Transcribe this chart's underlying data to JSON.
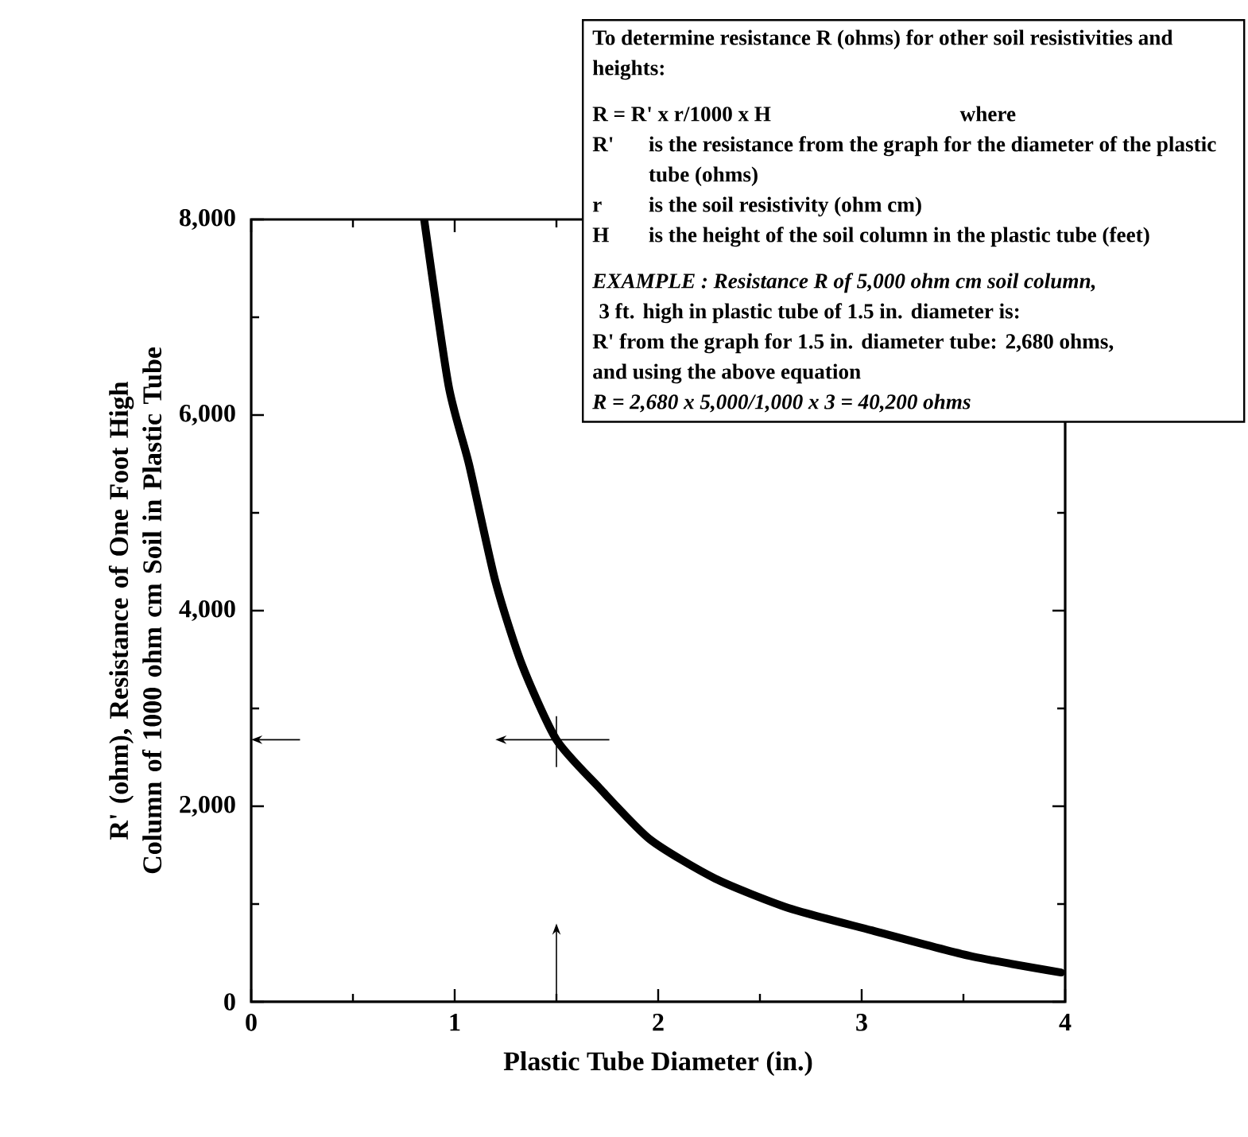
{
  "chart_data": {
    "type": "line",
    "xlabel": "Plastic Tube Diameter (in.)",
    "ylabel": "R' (ohm),  Resistance of One Foot High Column of 1000 ohm cm Soil in Plastic Tube",
    "x": [
      0.85,
      0.97,
      1.07,
      1.2,
      1.33,
      1.5,
      1.71,
      1.96,
      2.28,
      2.64,
      3.05,
      3.53,
      3.98
    ],
    "series": [
      {
        "color": "#000000",
        "values": [
          8000,
          6300,
          5500,
          4300,
          3450,
          2680,
          2190,
          1660,
          1260,
          960,
          730,
          470,
          300
        ]
      }
    ],
    "xlim": [
      0,
      4
    ],
    "xticks": [
      0,
      1,
      2,
      3,
      4
    ],
    "ylim": [
      0,
      8000
    ],
    "yticks": [
      0,
      {
        "value": 2000,
        "label": "2,000"
      },
      {
        "value": 4000,
        "label": "4,000"
      },
      {
        "value": 6000,
        "label": "6,000"
      },
      {
        "value": 8000,
        "label": "8,000"
      }
    ],
    "marker": "none",
    "line_style": "solid",
    "grid": false,
    "annotations": [
      "To determine resistance R (ohms) for other soil resistivities and heights:",
      "R =  R' x  r/1000 x H",
      "where",
      "R'",
      "is the resistance from the graph for the diameter of the plastic tube (ohms)",
      "r",
      "is the soil resistivity (ohm cm)",
      "H",
      "is the height of the soil column in the plastic tube (feet)",
      "*EXAMPLE :  Resistance R of 5,000 ohm cm soil column,*",
      "3 ft. high in plastic tube of 1.5 in. diameter is:",
      "R' from the graph for 1.5 in. diameter tube:  2,680 ohms,",
      "and using the above equation",
      "*R = 2,680 x 5,000/1,000 x 3 = 40,200 ohms*"
    ]
  }
}
